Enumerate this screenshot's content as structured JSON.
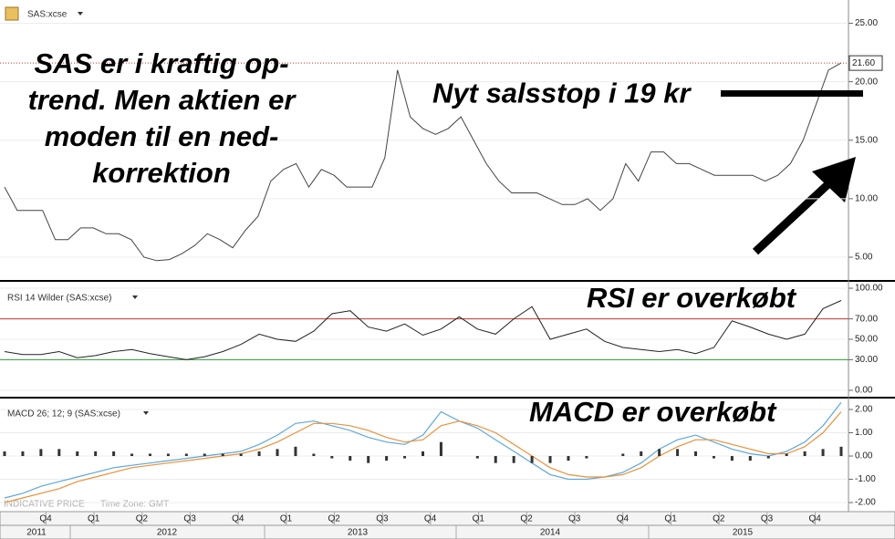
{
  "header": {
    "symbol": "SAS:xcse"
  },
  "chart_data": [
    {
      "type": "line",
      "title": "SAS:xcse",
      "color": "#444",
      "values": [
        11,
        9,
        9,
        9,
        6.5,
        6.5,
        7.5,
        7.5,
        7,
        7,
        6.5,
        5,
        4.7,
        4.8,
        5.3,
        6,
        7,
        6.5,
        5.8,
        7.3,
        8.5,
        11.5,
        12.5,
        13,
        11,
        12.5,
        12,
        11,
        11,
        11,
        13.5,
        21,
        17,
        16,
        15.5,
        16,
        17,
        15,
        13,
        11.5,
        10.5,
        10.5,
        10.5,
        10,
        9.5,
        9.5,
        10,
        9,
        10,
        13,
        11.5,
        14,
        14,
        13,
        13,
        12.5,
        12,
        12,
        12,
        12,
        11.5,
        12,
        13,
        15,
        18,
        21,
        21.6
      ],
      "ylim": [
        3.05,
        26.6
      ],
      "yticks": [
        {
          "value": 5,
          "label": "5.00"
        },
        {
          "value": 10,
          "label": "10.00"
        },
        {
          "value": 15,
          "label": "15.00"
        },
        {
          "value": 20,
          "label": "20.00"
        },
        {
          "value": 25,
          "label": "25.00"
        }
      ],
      "last_price": {
        "value": 21.6,
        "label": "21.60"
      },
      "annotations": [
        {
          "lines": [
            "SAS er i kraftig op-",
            "trend. Men aktien er",
            "moden til en ned-",
            "korrektion"
          ]
        },
        {
          "text": "Nyt salsstop i 19 kr",
          "value": 19
        }
      ]
    },
    {
      "type": "line",
      "title": "RSI 14 Wilder (SAS:xcse)",
      "color": "#222",
      "values": [
        38,
        35,
        35,
        38,
        32,
        34,
        38,
        40,
        36,
        33,
        30,
        33,
        38,
        45,
        55,
        50,
        48,
        58,
        75,
        78,
        62,
        58,
        65,
        54,
        60,
        72,
        60,
        55,
        70,
        82,
        50,
        55,
        60,
        48,
        42,
        40,
        38,
        40,
        36,
        42,
        68,
        62,
        55,
        50,
        55,
        80,
        88
      ],
      "levels": [
        {
          "value": 70,
          "color": "#c0392b"
        },
        {
          "value": 30,
          "color": "#2e9e3a"
        }
      ],
      "ylim": [
        -6.25,
        105.4
      ],
      "yticks": [
        {
          "value": 100,
          "label": "100.00"
        },
        {
          "value": 70,
          "label": "70.00"
        },
        {
          "value": 50,
          "label": "50.00"
        },
        {
          "value": 30,
          "label": "30.00"
        },
        {
          "value": 0,
          "label": "0.00"
        }
      ],
      "annotation": "RSI er overkøbt"
    },
    {
      "type": "macd",
      "title": "MACD 26; 12; 9 (SAS:xcse)",
      "series": [
        {
          "kind": "line",
          "color": "#5fa8d8",
          "values": [
            -1.8,
            -1.6,
            -1.3,
            -1.1,
            -0.9,
            -0.7,
            -0.5,
            -0.4,
            -0.3,
            -0.2,
            -0.1,
            0,
            0.1,
            0.2,
            0.5,
            0.9,
            1.4,
            1.5,
            1.3,
            1.1,
            0.8,
            0.6,
            0.5,
            0.9,
            1.9,
            1.5,
            1.2,
            0.7,
            0.2,
            -0.3,
            -0.8,
            -1,
            -1,
            -0.9,
            -0.7,
            -0.3,
            0.3,
            0.7,
            0.9,
            0.6,
            0.3,
            0.1,
            0,
            0.2,
            0.6,
            1.3,
            2.3
          ]
        },
        {
          "kind": "line",
          "color": "#e8913a",
          "values": [
            -2,
            -1.8,
            -1.6,
            -1.4,
            -1.1,
            -0.9,
            -0.7,
            -0.5,
            -0.4,
            -0.3,
            -0.2,
            -0.1,
            0,
            0.1,
            0.3,
            0.6,
            1,
            1.4,
            1.4,
            1.3,
            1.1,
            0.8,
            0.6,
            0.7,
            1.3,
            1.5,
            1.3,
            1,
            0.5,
            0,
            -0.5,
            -0.8,
            -0.9,
            -0.9,
            -0.8,
            -0.5,
            0,
            0.4,
            0.7,
            0.7,
            0.5,
            0.3,
            0.1,
            0.1,
            0.4,
            1,
            1.9
          ]
        },
        {
          "kind": "bar",
          "color": "#333",
          "values": [
            0.2,
            0.2,
            0.3,
            0.3,
            0.2,
            0.2,
            0.2,
            0.1,
            0.1,
            0.1,
            0.1,
            0.1,
            0.1,
            0.1,
            0.2,
            0.3,
            0.4,
            0.1,
            -0.1,
            -0.2,
            -0.3,
            -0.2,
            -0.1,
            0.2,
            0.6,
            0,
            -0.1,
            -0.3,
            -0.3,
            -0.3,
            -0.3,
            -0.2,
            -0.1,
            0,
            0.1,
            0.2,
            0.3,
            0.3,
            0.2,
            -0.1,
            -0.2,
            -0.2,
            -0.1,
            0.1,
            0.2,
            0.3,
            0.4
          ]
        }
      ],
      "ylim": [
        -2.35,
        2.43
      ],
      "yticks": [
        {
          "value": 2,
          "label": "2.00"
        },
        {
          "value": 1,
          "label": "1.00"
        },
        {
          "value": 0,
          "label": "0.00"
        },
        {
          "value": -1,
          "label": "-1.00"
        },
        {
          "value": -2,
          "label": "-2.00"
        }
      ],
      "annotation": "MACD er overkøbt"
    }
  ],
  "time_axis": {
    "quarters": [
      "Q4",
      "Q1",
      "Q2",
      "Q3",
      "Q4",
      "Q1",
      "Q2",
      "Q3",
      "Q4",
      "Q1",
      "Q2",
      "Q3",
      "Q4",
      "Q1",
      "Q2",
      "Q3",
      "Q4"
    ],
    "years": [
      "2011",
      "2012",
      "2013",
      "2014",
      "2015"
    ]
  },
  "footer": {
    "price_type": "INDICATIVE PRICE",
    "time_zone": "Time Zone: GMT"
  }
}
